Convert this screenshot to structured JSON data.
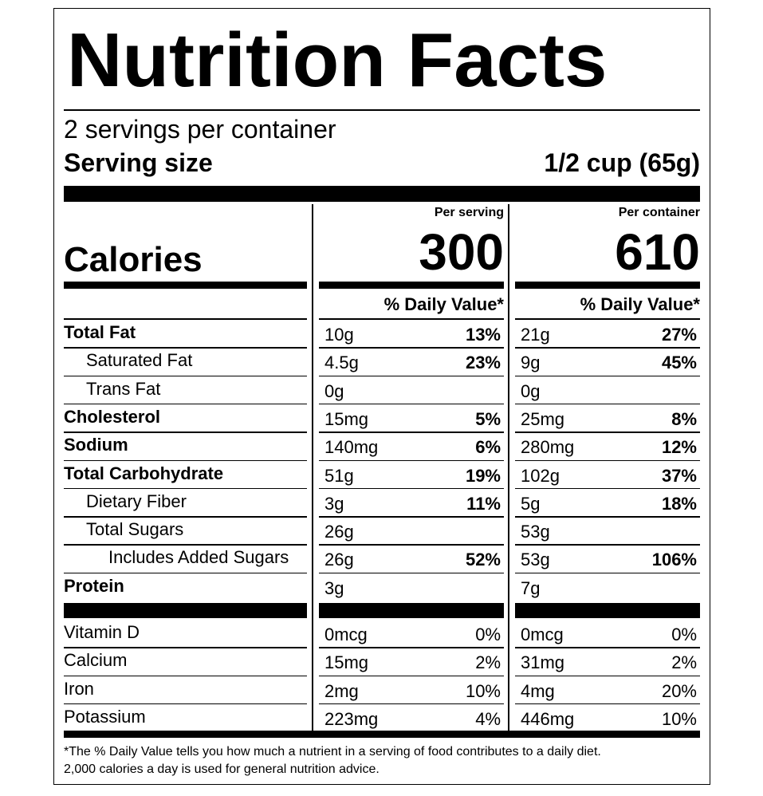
{
  "title": "Nutrition Facts",
  "servings": "2 servings per container",
  "serving_size": {
    "label": "Serving size",
    "value": "1/2 cup (65g)"
  },
  "calories": {
    "label": "Calories",
    "columns": [
      {
        "heading": "Per serving",
        "value": "300",
        "dv_heading": "% Daily Value*"
      },
      {
        "heading": "Per container",
        "value": "610",
        "dv_heading": "% Daily Value*"
      }
    ]
  },
  "nutrients": [
    {
      "name": "Total Fat",
      "bold": true,
      "indent": 0,
      "cells": [
        [
          "10g",
          "13%"
        ],
        [
          "21g",
          "27%"
        ]
      ]
    },
    {
      "name": "Saturated Fat",
      "bold": false,
      "indent": 1,
      "cells": [
        [
          "4.5g",
          "23%"
        ],
        [
          "9g",
          "45%"
        ]
      ]
    },
    {
      "name": "Trans Fat",
      "bold": false,
      "indent": 1,
      "cells": [
        [
          "0g"
        ],
        [
          "0g"
        ]
      ]
    },
    {
      "name": "Cholesterol",
      "bold": true,
      "indent": 0,
      "cells": [
        [
          "15mg",
          "5%"
        ],
        [
          "25mg",
          "8%"
        ]
      ]
    },
    {
      "name": "Sodium",
      "bold": true,
      "indent": 0,
      "cells": [
        [
          "140mg",
          "6%"
        ],
        [
          "280mg",
          "12%"
        ]
      ]
    },
    {
      "name": "Total Carbohydrate",
      "bold": true,
      "indent": 0,
      "cells": [
        [
          "51g",
          "19%"
        ],
        [
          "102g",
          "37%"
        ]
      ]
    },
    {
      "name": "Dietary Fiber",
      "bold": false,
      "indent": 1,
      "cells": [
        [
          "3g",
          "11%"
        ],
        [
          "5g",
          "18%"
        ]
      ]
    },
    {
      "name": "Total Sugars",
      "bold": false,
      "indent": 1,
      "cells": [
        [
          "26g"
        ],
        [
          "53g"
        ]
      ]
    },
    {
      "name": "Includes Added Sugars",
      "bold": false,
      "indent": 2,
      "cells": [
        [
          "26g",
          "52%"
        ],
        [
          "53g",
          "106%"
        ]
      ]
    },
    {
      "name": "Protein",
      "bold": true,
      "indent": 0,
      "cells": [
        [
          "3g"
        ],
        [
          "7g"
        ]
      ]
    }
  ],
  "vitamins": [
    {
      "name": "Vitamin D",
      "cells": [
        [
          "0mcg",
          "0%"
        ],
        [
          "0mcg",
          "0%"
        ]
      ]
    },
    {
      "name": "Calcium",
      "cells": [
        [
          "15mg",
          "2%"
        ],
        [
          "31mg",
          "2%"
        ]
      ]
    },
    {
      "name": "Iron",
      "cells": [
        [
          "2mg",
          "10%"
        ],
        [
          "4mg",
          "20%"
        ]
      ]
    },
    {
      "name": "Potassium",
      "cells": [
        [
          "223mg",
          "4%"
        ],
        [
          "446mg",
          "10%"
        ]
      ]
    }
  ],
  "footnote": [
    "*The % Daily Value tells you how much a nutrient in a serving of food contributes to a daily diet.",
    "2,000 calories a day is used for general nutrition advice."
  ]
}
